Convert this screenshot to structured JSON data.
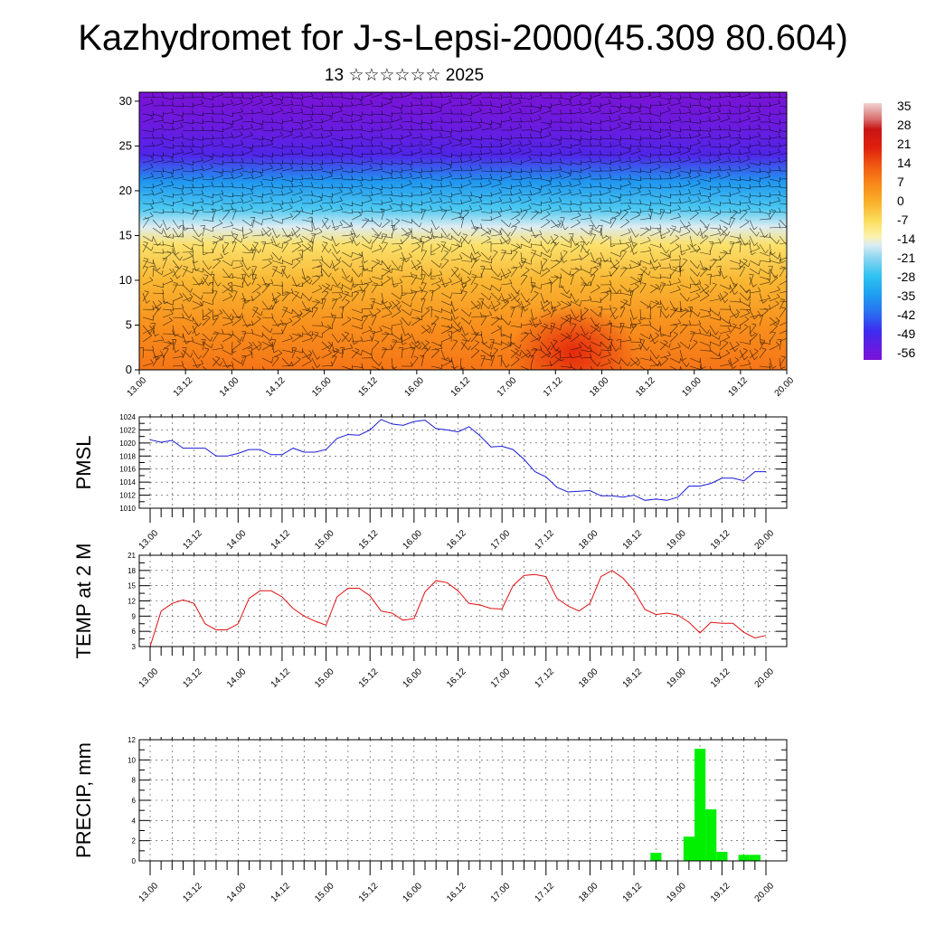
{
  "header": {
    "title": "Kazhydromet for J-s-Lepsi-2000(45.309 80.604)",
    "subtitle": "13 ☆☆☆☆☆☆ 2025"
  },
  "time_ticks": [
    "13.00",
    "13.12",
    "14.00",
    "14.12",
    "15.00",
    "15.12",
    "16.00",
    "16.12",
    "17.00",
    "17.12",
    "18.00",
    "18.12",
    "19.00",
    "19.12",
    "20.00"
  ],
  "colors": {
    "pmsl_line": "#1a1ad8",
    "temp_line": "#e01010",
    "precip_bar": "#00f000",
    "grid": "#000000"
  },
  "chart_data": [
    {
      "type": "heatmap",
      "name": "vertical cross-section (temperature shading with wind barbs)",
      "x_ticks": [
        "13.00",
        "13.12",
        "14.00",
        "14.12",
        "15.00",
        "15.12",
        "16.00",
        "16.12",
        "17.00",
        "17.12",
        "18.00",
        "18.12",
        "19.00",
        "19.12",
        "20.00"
      ],
      "y_ticks": [
        0,
        5,
        10,
        15,
        20,
        25,
        30
      ],
      "ylim": [
        0,
        31
      ],
      "colorbar_labels": [
        35,
        28,
        21,
        14,
        7,
        0,
        -7,
        -14,
        -21,
        -28,
        -35,
        -42,
        -49,
        -56
      ],
      "colorbar_range": [
        -60,
        38
      ],
      "temperature_profile": [
        {
          "level": 0,
          "value": 10
        },
        {
          "level": 5,
          "value": 6
        },
        {
          "level": 10,
          "value": -1
        },
        {
          "level": 14,
          "value": -8
        },
        {
          "level": 16,
          "value": -16
        },
        {
          "level": 18,
          "value": -26
        },
        {
          "level": 21,
          "value": -36
        },
        {
          "level": 24,
          "value": -52
        },
        {
          "level": 27,
          "value": -56
        },
        {
          "level": 31,
          "value": -60
        }
      ],
      "warm_spot": {
        "time": "17.12",
        "level": 2,
        "value": 16
      },
      "grid": false
    },
    {
      "type": "line",
      "ylabel": "PMSL",
      "ylim": [
        1010,
        1024
      ],
      "y_ticks": [
        1010,
        1012,
        1014,
        1016,
        1018,
        1020,
        1022,
        1024
      ],
      "x_ticks": [
        "13.00",
        "13.12",
        "14.00",
        "14.12",
        "15.00",
        "15.12",
        "16.00",
        "16.12",
        "17.00",
        "17.12",
        "18.00",
        "18.12",
        "19.00",
        "19.12",
        "20.00"
      ],
      "grid": true,
      "x": [
        0,
        3,
        6,
        9,
        12,
        15,
        18,
        21,
        24,
        27,
        30,
        33,
        36,
        39,
        42,
        45,
        48,
        51,
        54,
        57,
        60,
        63,
        66,
        69,
        72,
        75,
        78,
        81,
        84,
        87,
        90,
        93,
        96,
        99,
        102,
        105,
        108,
        111,
        114,
        117,
        120,
        123,
        126,
        129,
        132,
        135,
        138,
        141,
        144,
        147,
        150,
        153,
        156,
        159,
        162,
        165,
        168
      ],
      "values": [
        1020.5,
        1020.1,
        1020.4,
        1019.2,
        1019.2,
        1019.2,
        1018.0,
        1018.0,
        1018.4,
        1019.0,
        1019.0,
        1018.2,
        1018.2,
        1019.2,
        1018.6,
        1018.6,
        1019.0,
        1020.7,
        1021.3,
        1021.2,
        1022.0,
        1023.6,
        1022.9,
        1022.7,
        1023.3,
        1023.5,
        1022.2,
        1022.0,
        1021.7,
        1022.5,
        1021.1,
        1019.4,
        1019.5,
        1019.0,
        1017.5,
        1015.6,
        1014.8,
        1013.2,
        1012.5,
        1012.6,
        1012.7,
        1011.9,
        1011.9,
        1011.7,
        1012.0,
        1011.2,
        1011.4,
        1011.2,
        1011.7,
        1013.4,
        1013.4,
        1013.8,
        1014.6,
        1014.6,
        1014.2,
        1015.6,
        1015.6
      ]
    },
    {
      "type": "line",
      "ylabel": "TEMP at 2 M",
      "ylim": [
        3,
        21
      ],
      "y_ticks": [
        3,
        6,
        9,
        12,
        15,
        18,
        21
      ],
      "x_ticks": [
        "13.00",
        "13.12",
        "14.00",
        "14.12",
        "15.00",
        "15.12",
        "16.00",
        "16.12",
        "17.00",
        "17.12",
        "18.00",
        "18.12",
        "19.00",
        "19.12",
        "20.00"
      ],
      "grid": true,
      "x": [
        0,
        3,
        6,
        9,
        12,
        15,
        18,
        21,
        24,
        27,
        30,
        33,
        36,
        39,
        42,
        45,
        48,
        51,
        54,
        57,
        60,
        63,
        66,
        69,
        72,
        75,
        78,
        81,
        84,
        87,
        90,
        93,
        96,
        99,
        102,
        105,
        108,
        111,
        114,
        117,
        120,
        123,
        126,
        129,
        132,
        135,
        138,
        141,
        144,
        147,
        150,
        153,
        156,
        159,
        162,
        165,
        168
      ],
      "values": [
        3.0,
        10.0,
        11.5,
        12.2,
        11.5,
        7.5,
        6.3,
        6.3,
        7.5,
        12.5,
        14.0,
        14.0,
        12.8,
        10.5,
        9.0,
        8.0,
        7.2,
        12.8,
        14.5,
        14.5,
        13.0,
        10.0,
        9.6,
        8.2,
        8.5,
        13.8,
        16.0,
        15.6,
        14.0,
        11.5,
        11.2,
        10.5,
        10.4,
        15.0,
        17.0,
        17.2,
        16.8,
        12.5,
        11.0,
        10.0,
        11.5,
        16.8,
        18.0,
        16.5,
        14.0,
        10.3,
        9.3,
        9.6,
        9.2,
        7.8,
        5.7,
        7.8,
        7.6,
        7.6,
        5.8,
        4.7,
        5.2
      ]
    },
    {
      "type": "bar",
      "ylabel": "PRECIP, mm",
      "ylim": [
        0,
        12
      ],
      "y_ticks": [
        0,
        2,
        4,
        6,
        8,
        10,
        12
      ],
      "x_ticks": [
        "13.00",
        "13.12",
        "14.00",
        "14.12",
        "15.00",
        "15.12",
        "16.00",
        "16.12",
        "17.00",
        "17.12",
        "18.00",
        "18.12",
        "19.00",
        "19.12",
        "20.00"
      ],
      "grid": true,
      "bar_width_hours": 3,
      "x": [
        138,
        147,
        150,
        153,
        156,
        162,
        165
      ],
      "values": [
        0.8,
        2.4,
        11.1,
        5.1,
        0.9,
        0.6,
        0.6
      ]
    }
  ]
}
